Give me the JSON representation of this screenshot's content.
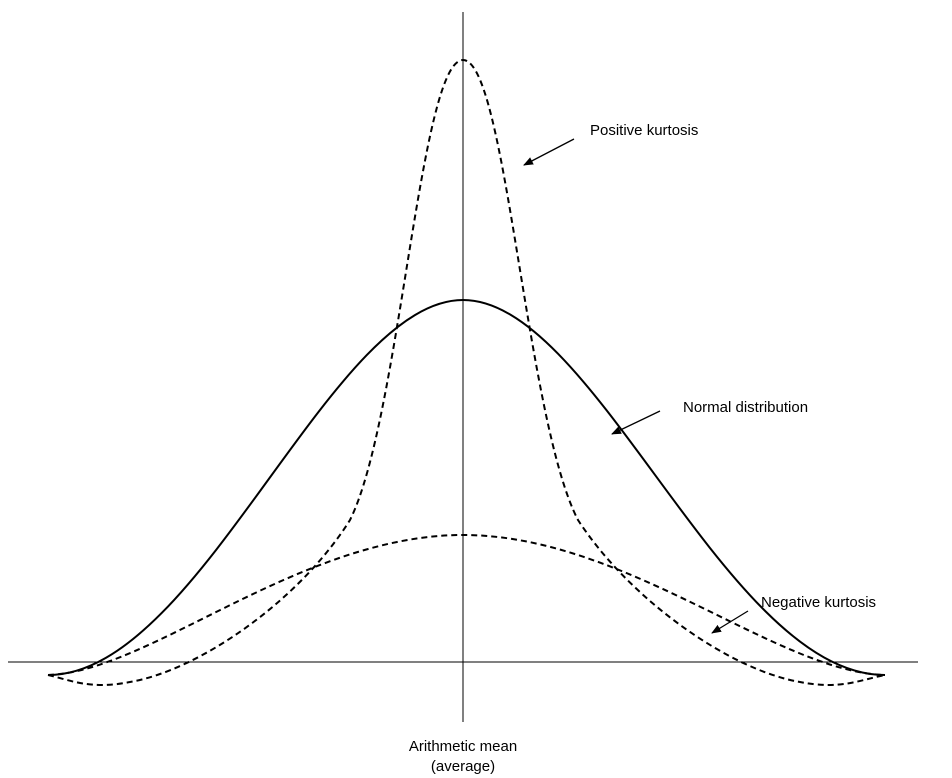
{
  "labels": {
    "positive": "Positive kurtosis",
    "normal": "Normal distribution",
    "negative": "Negative kurtosis",
    "mean_line1": "Arithmetic mean",
    "mean_line2": "(average)"
  }
}
